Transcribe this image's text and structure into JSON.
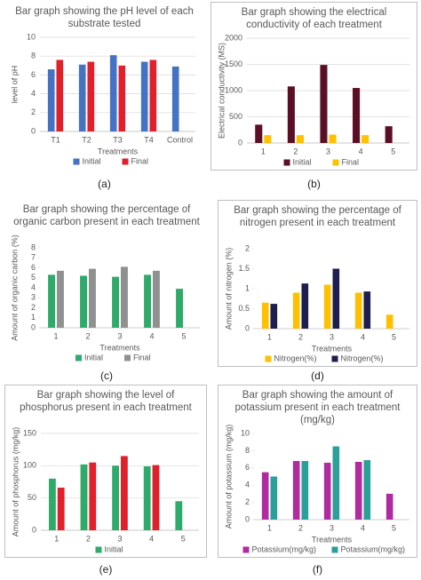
{
  "chart_data": [
    {
      "type": "bar",
      "title": "Bar graph showing the pH level of each substrate tested",
      "caption": "(a)",
      "categories": [
        "T1",
        "T2",
        "T3",
        "T4",
        "Control"
      ],
      "x_label": "Treatments",
      "y_label": "level of pH",
      "ylim": [
        0,
        10
      ],
      "yticks": [
        0,
        2,
        4,
        6,
        8,
        10
      ],
      "grid": true,
      "series": [
        {
          "name": "Initial",
          "color": "#4472c4",
          "values": [
            6.6,
            7.1,
            8.1,
            7.4,
            6.9
          ]
        },
        {
          "name": "Final",
          "color": "#e0202b",
          "values": [
            7.6,
            7.4,
            7.0,
            7.6,
            null
          ]
        }
      ]
    },
    {
      "type": "bar",
      "title": "Bar graph showing the electrical conductivity of each treatment",
      "caption": "(b)",
      "categories": [
        "1",
        "2",
        "3",
        "4",
        "5"
      ],
      "y_label": "Electrical conductivity (MS)",
      "ylim": [
        0,
        2000
      ],
      "yticks": [
        0,
        500,
        1000,
        1500,
        2000
      ],
      "grid": true,
      "series": [
        {
          "name": "Initial",
          "color": "#5b0f24",
          "values": [
            350,
            1080,
            1490,
            1050,
            320
          ]
        },
        {
          "name": "Final",
          "color": "#ffc000",
          "values": [
            150,
            150,
            160,
            150,
            null
          ]
        }
      ]
    },
    {
      "type": "bar",
      "title": "Bar graph showing the percentage of organic carbon present in each treatment",
      "caption": "(c)",
      "categories": [
        "1",
        "2",
        "3",
        "4",
        "5"
      ],
      "x_label": "Treatments",
      "y_label": "Amount of organic carbon (%)",
      "ylim": [
        0,
        8
      ],
      "yticks": [
        0,
        1,
        2,
        3,
        4,
        5,
        6,
        7,
        8
      ],
      "grid": false,
      "series": [
        {
          "name": "Initial",
          "color": "#2eaa6a",
          "values": [
            5.3,
            5.2,
            5.1,
            5.3,
            3.9
          ]
        },
        {
          "name": "Final",
          "color": "#909090",
          "values": [
            5.7,
            5.9,
            6.1,
            5.7,
            null
          ]
        }
      ]
    },
    {
      "type": "bar",
      "title": "Bar graph showing the percentage of nitrogen present in each treatment",
      "caption": "(d)",
      "categories": [
        "1",
        "2",
        "3",
        "4",
        "5"
      ],
      "x_label": "Treatments",
      "y_label": "Amount of nitrogen (%)",
      "ylim": [
        0,
        2
      ],
      "yticks": [
        0,
        0.5,
        1,
        1.5,
        2
      ],
      "grid": false,
      "series": [
        {
          "name": "Nitrogen(%)",
          "color": "#ffc000",
          "values": [
            0.65,
            0.9,
            1.1,
            0.9,
            0.35
          ]
        },
        {
          "name": "Nitrogen(%)",
          "color": "#1f1f4f",
          "values": [
            0.62,
            1.13,
            1.5,
            0.93,
            null
          ]
        }
      ]
    },
    {
      "type": "bar",
      "title": "Bar graph showing the level of phosphorus present in each treatment",
      "caption": "(e)",
      "categories": [
        "1",
        "2",
        "3",
        "4",
        "5"
      ],
      "y_label": "Amount of phosphorus (mg/kg)",
      "ylim": [
        0,
        150
      ],
      "yticks": [
        0,
        50,
        100,
        150
      ],
      "grid": true,
      "series": [
        {
          "name": "Initial",
          "color": "#2eaa6a",
          "values": [
            80,
            102,
            100,
            99,
            45
          ]
        },
        {
          "color": "#e0202b",
          "values": [
            66,
            105,
            115,
            101,
            null
          ]
        }
      ]
    },
    {
      "type": "bar",
      "title": "Bar graph showing the amount of potassium present in each treatment (mg/kg)",
      "caption": "(f)",
      "categories": [
        "1",
        "2",
        "3",
        "4",
        "5"
      ],
      "x_label": "Treatments",
      "y_label": "Amount of potassium (mg/kg)",
      "ylim": [
        0,
        10
      ],
      "yticks": [
        0,
        2,
        4,
        6,
        8,
        10
      ],
      "grid": false,
      "series": [
        {
          "name": "Potassium(mg/kg)",
          "color": "#b02aa0",
          "values": [
            5.5,
            6.8,
            6.6,
            6.7,
            3.0
          ]
        },
        {
          "name": "Potassium(mg/kg)",
          "color": "#2aa09a",
          "values": [
            5.0,
            6.8,
            8.5,
            6.9,
            null
          ]
        }
      ]
    }
  ]
}
